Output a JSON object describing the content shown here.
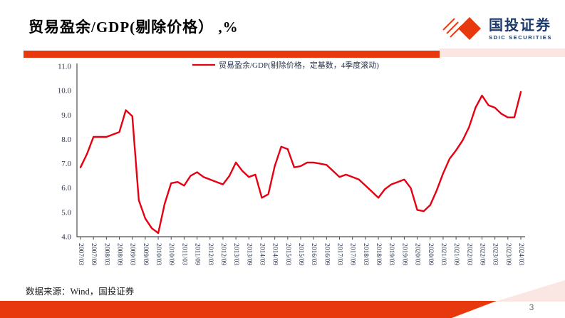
{
  "header": {
    "title": "贸易盈余/GDP(剔除价格） ,%"
  },
  "logo": {
    "name_cn": "国投证券",
    "name_en": "SDIC SECURITIES"
  },
  "footer": {
    "source_note": "数据来源：Wind，国投证券",
    "page_number": "3"
  },
  "colors": {
    "brand_red": "#e8380d",
    "line_red": "#e60012",
    "light_pink": "#fae7e3",
    "logo_navy": "#1c3a6b",
    "axis_text": "#26324b",
    "axis_line": "#4d4d4d"
  },
  "chart_data": {
    "type": "line",
    "legend": "贸易盈余/GDP(剔除价格，定基数，4季度滚动)",
    "legend_position": "top-center",
    "grid": false,
    "line_color": "#e60012",
    "ylim": [
      4.0,
      11.0
    ],
    "y_ticks": [
      "4.0",
      "5.0",
      "6.0",
      "7.0",
      "8.0",
      "9.0",
      "10.0",
      "11.0"
    ],
    "x_ticks": [
      "2007/03",
      "2007/09",
      "2008/03",
      "2008/09",
      "2009/03",
      "2009/09",
      "2010/03",
      "2010/09",
      "2011/03",
      "2011/09",
      "2012/03",
      "2012/09",
      "2013/03",
      "2013/09",
      "2014/03",
      "2014/09",
      "2015/03",
      "2015/09",
      "2016/03",
      "2016/09",
      "2017/03",
      "2017/09",
      "2018/03",
      "2018/09",
      "2019/03",
      "2019/09",
      "2020/03",
      "2020/09",
      "2021/03",
      "2021/09",
      "2022/03",
      "2022/09",
      "2023/03",
      "2023/09",
      "2024/03"
    ],
    "x": [
      "2007/03",
      "2007/06",
      "2007/09",
      "2007/12",
      "2008/03",
      "2008/06",
      "2008/09",
      "2008/12",
      "2009/03",
      "2009/06",
      "2009/09",
      "2009/12",
      "2010/03",
      "2010/06",
      "2010/09",
      "2010/12",
      "2011/03",
      "2011/06",
      "2011/09",
      "2011/12",
      "2012/03",
      "2012/06",
      "2012/09",
      "2012/12",
      "2013/03",
      "2013/06",
      "2013/09",
      "2013/12",
      "2014/03",
      "2014/06",
      "2014/09",
      "2014/12",
      "2015/03",
      "2015/06",
      "2015/09",
      "2015/12",
      "2016/03",
      "2016/06",
      "2016/09",
      "2016/12",
      "2017/03",
      "2017/06",
      "2017/09",
      "2017/12",
      "2018/03",
      "2018/06",
      "2018/09",
      "2018/12",
      "2019/03",
      "2019/06",
      "2019/09",
      "2019/12",
      "2020/03",
      "2020/06",
      "2020/09",
      "2020/12",
      "2021/03",
      "2021/06",
      "2021/09",
      "2021/12",
      "2022/03",
      "2022/06",
      "2022/09",
      "2022/12",
      "2023/03",
      "2023/06",
      "2023/09",
      "2023/12",
      "2024/03"
    ],
    "values": [
      6.85,
      7.4,
      8.1,
      8.1,
      8.1,
      8.2,
      8.3,
      9.2,
      8.95,
      5.5,
      4.75,
      4.35,
      4.15,
      5.35,
      6.2,
      6.25,
      6.1,
      6.5,
      6.65,
      6.45,
      6.35,
      6.25,
      6.15,
      6.5,
      7.05,
      6.7,
      6.45,
      6.55,
      5.6,
      5.75,
      6.9,
      7.7,
      7.6,
      6.85,
      6.9,
      7.05,
      7.05,
      7.0,
      6.95,
      6.7,
      6.45,
      6.55,
      6.45,
      6.35,
      6.1,
      5.85,
      5.6,
      5.95,
      6.15,
      6.25,
      6.35,
      6.0,
      5.1,
      5.05,
      5.3,
      5.9,
      6.6,
      7.2,
      7.55,
      7.95,
      8.5,
      9.3,
      9.8,
      9.4,
      9.3,
      9.05,
      8.9,
      8.9,
      9.95
    ]
  }
}
